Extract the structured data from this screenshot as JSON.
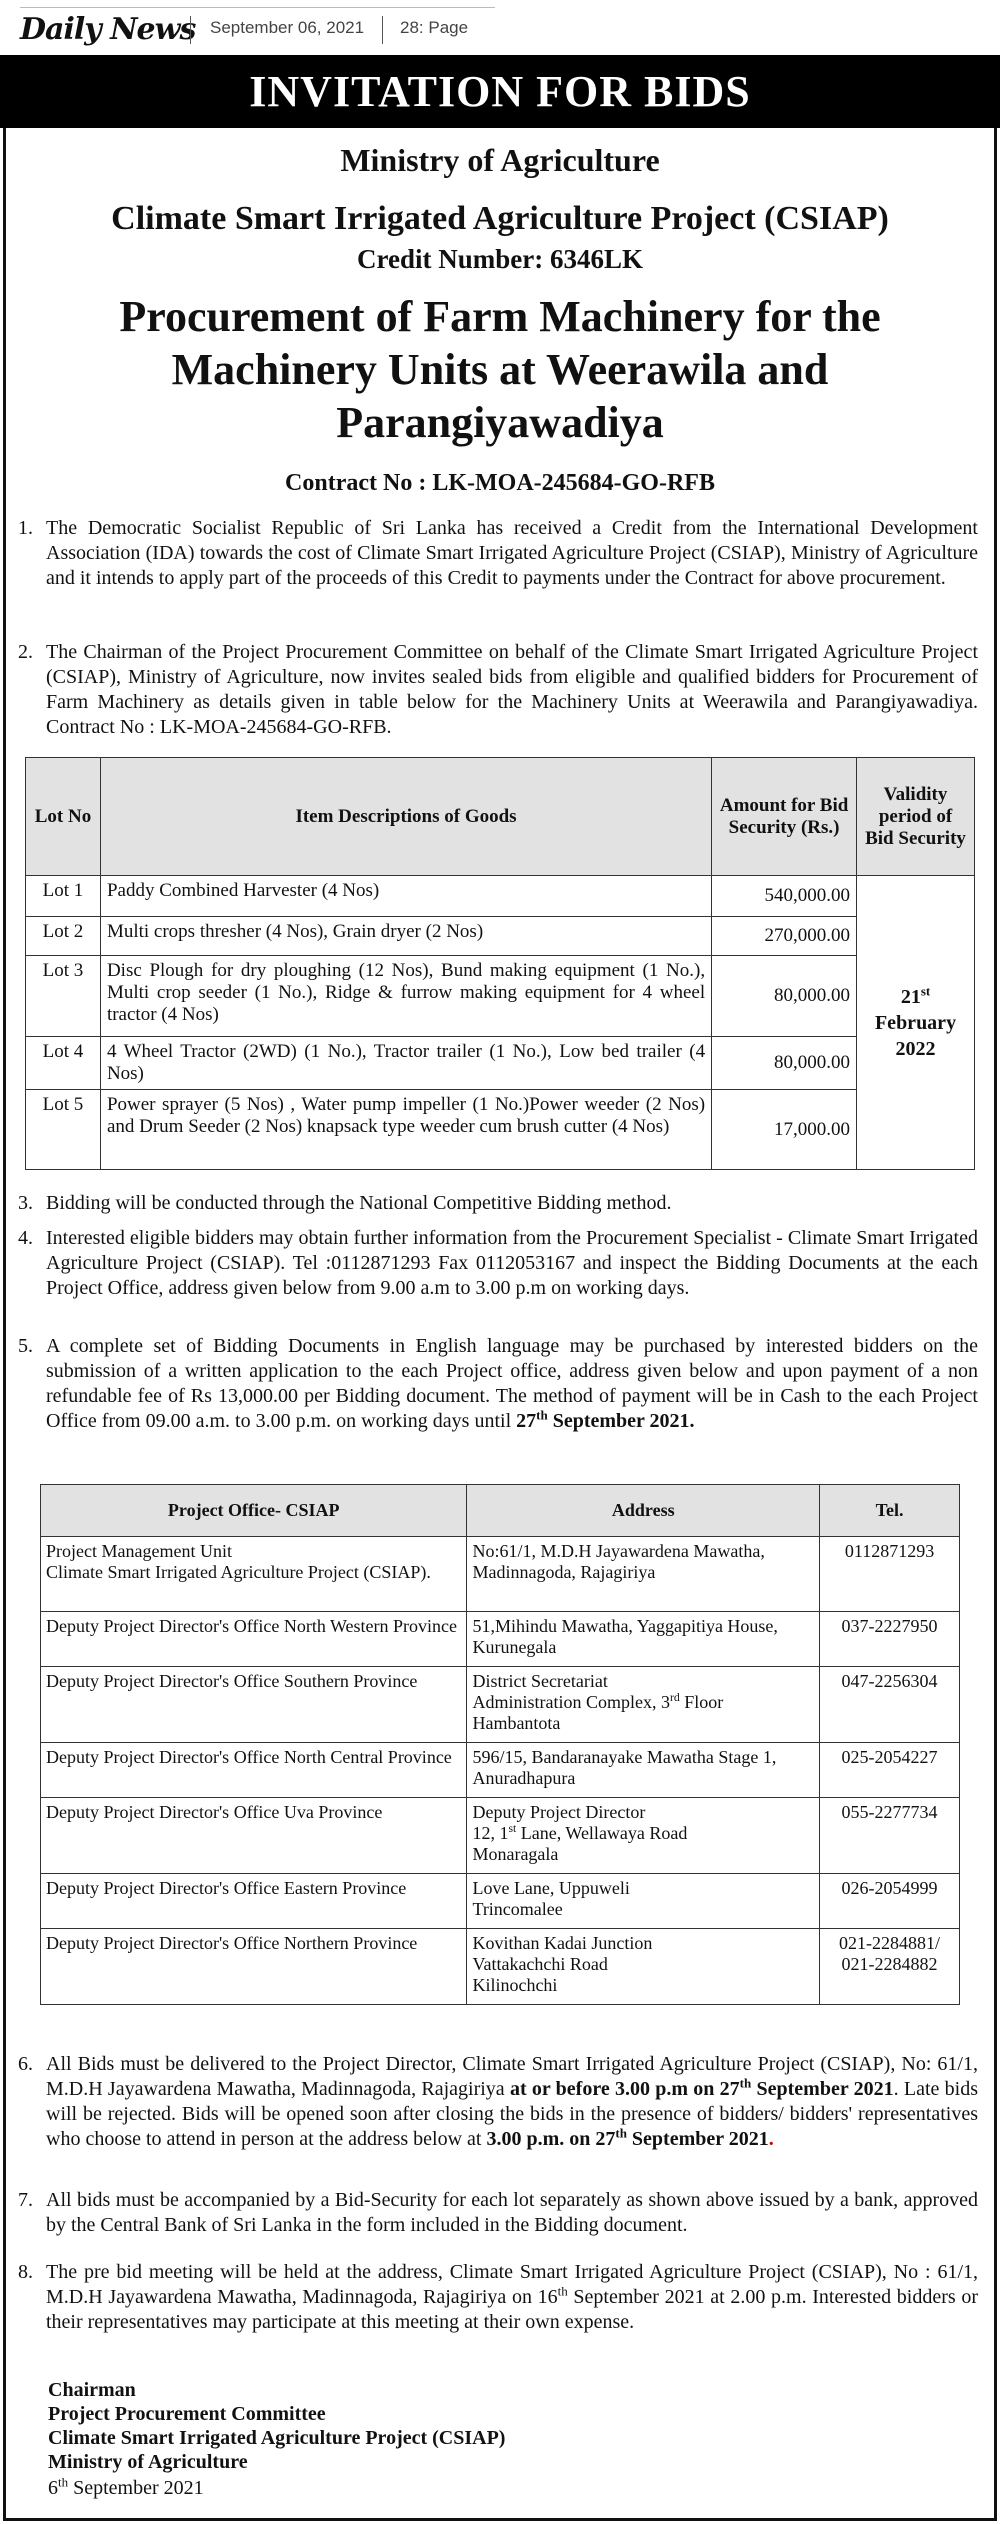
{
  "masthead": {
    "logo": "Daily News",
    "date": "September 06, 2021",
    "page": "28: Page"
  },
  "banner": "INVITATION FOR BIDS",
  "ministry": "Ministry of Agriculture",
  "project": "Climate Smart Irrigated Agriculture Project (CSIAP)",
  "credit": "Credit Number: 6346LK",
  "title": "Procurement of Farm Machinery for the Machinery Units at Weerawila and Parangiyawadiya",
  "contract": "Contract No : LK-MOA-245684-GO-RFB",
  "paras": {
    "p1": {
      "num": "1.",
      "text": "The Democratic Socialist Republic of Sri Lanka has received a Credit from the International Development Association (IDA) towards the cost of Climate Smart Irrigated Agriculture Project (CSIAP), Ministry of Agriculture and it intends to apply part of the proceeds of this Credit to payments under the Contract for above procurement."
    },
    "p2": {
      "num": "2.",
      "text": "The Chairman of the Project Procurement Committee on behalf of the Climate Smart Irrigated Agriculture Project (CSIAP), Ministry of Agriculture, now invites sealed bids from eligible and qualified bidders for Procurement of Farm Machinery as details given in table below for the Machinery Units at Weerawila and Parangiyawadiya. Contract No : LK-MOA-245684-GO-RFB."
    },
    "p3": {
      "num": "3.",
      "text": "Bidding will be conducted through the National Competitive Bidding method."
    },
    "p4": {
      "num": "4.",
      "text": "Interested eligible bidders may obtain further information from the Procurement Specialist -  Climate Smart Irrigated Agriculture Project (CSIAP). Tel :0112871293  Fax 0112053167 and inspect the Bidding Documents at the each Project Office, address given below from  9.00 a.m to 3.00 p.m on working days."
    },
    "p5": {
      "num": "5.",
      "text": "A complete set of Bidding Documents in English language may be purchased by interested bidders on the submission of a written application to the each Project office, address given below and upon payment of a non refundable fee of Rs 13,000.00 per Bidding document. The method of payment will be in Cash to the each Project Office  from 09.00 a.m. to 3.00 p.m. on working days  until ",
      "bold_a": "27",
      "bold_sup": "th",
      "bold_b": "September 2021",
      "end": "."
    },
    "p6": {
      "num": "6.",
      "text_a": "All Bids must be delivered to the Project Director, Climate Smart Irrigated Agriculture Project (CSIAP), No: 61/1, M.D.H Jayawardena Mawatha, Madinnagoda, Rajagiriya ",
      "bold_a": "at or before  3.00 p.m on 27",
      "sup_a": "th",
      "bold_b": "September 2021",
      "text_b": ". Late bids will  be rejected.  Bids will be opened soon after closing the bids in the presence of bidders/ bidders' representatives who choose to attend in person at the address below at ",
      "bold_c": "3.00 p.m. on 27",
      "sup_c": "th",
      "bold_d": "  September  2021",
      "end": "."
    },
    "p7": {
      "num": "7.",
      "text": "All bids must be accompanied by a  Bid-Security for each lot separately as shown  above issued by a bank, approved by the Central Bank of Sri Lanka in the form included in the Bidding document."
    },
    "p8": {
      "num": "8.",
      "text_a": "The pre bid meeting will be held at the address, Climate Smart Irrigated Agriculture Project (CSIAP), No : 61/1, M.D.H Jayawardena Mawatha, Madinnagoda, Rajagiriya on 16",
      "sup": "th",
      "text_b": " September 2021 at 2.00 p.m. Interested bidders or their representatives  may participate at this meeting at their  own expense."
    }
  },
  "lots_table": {
    "headers": [
      "Lot No",
      "Item Descriptions of Goods",
      "Amount for Bid Security (Rs.)",
      "Validity period of Bid Security"
    ],
    "rows": [
      {
        "lot": "Lot 1",
        "desc": "Paddy Combined Harvester (4 Nos)",
        "amount": "540,000.00"
      },
      {
        "lot": "Lot 2",
        "desc": "Multi crops thresher (4 Nos), Grain dryer (2 Nos)",
        "amount": "270,000.00"
      },
      {
        "lot": "Lot 3",
        "desc": "Disc Plough for dry ploughing (12 Nos), Bund making equipment (1 No.), Multi crop seeder (1 No.), Ridge & furrow making equipment for 4 wheel tractor (4 Nos)",
        "amount": "80,000.00"
      },
      {
        "lot": "Lot 4",
        "desc": "4 Wheel Tractor (2WD)  (1 No.), Tractor trailer  (1 No.), Low bed trailer (4 Nos)",
        "amount": "80,000.00"
      },
      {
        "lot": "Lot 5",
        "desc": "Power sprayer (5 Nos) , Water pump impeller (1 No.)Power weeder (2 Nos)  and Drum Seeder (2 Nos) knapsack type weeder cum brush cutter (4 Nos)",
        "amount": "17,000.00"
      }
    ],
    "validity": {
      "day": "21",
      "sup": "st",
      "month": "February",
      "year": "2022"
    }
  },
  "offices_table": {
    "headers": [
      "Project Office- CSIAP",
      "Address",
      "Tel."
    ],
    "rows": [
      {
        "office": [
          "Project Management Unit",
          "Climate Smart Irrigated Agriculture Project (CSIAP)."
        ],
        "address": [
          "No:61/1, M.D.H Jayawardena Mawatha, Madinnagoda,  Rajagiriya"
        ],
        "tel": [
          "0112871293"
        ]
      },
      {
        "office": [
          "Deputy Project Director's Office North Western Province"
        ],
        "address": [
          "51,Mihindu Mawatha, Yaggapitiya House,  Kurunegala"
        ],
        "tel": [
          "037-2227950"
        ]
      },
      {
        "office": [
          "Deputy Project Director's Office Southern Province"
        ],
        "address": [
          "District Secretariat",
          "Administration Complex, 3",
          "rd",
          " Floor",
          "Hambantota"
        ],
        "tel": [
          "047-2256304"
        ]
      },
      {
        "office": [
          "Deputy Project Director's Office North Central Province"
        ],
        "address": [
          "596/15, Bandaranayake Mawatha Stage 1, Anuradhapura"
        ],
        "tel": [
          "025-2054227"
        ]
      },
      {
        "office": [
          "Deputy Project Director's Office Uva Province"
        ],
        "address": [
          "Deputy Project Director",
          "12, 1",
          "st",
          " Lane, Wellawaya Road",
          "Monaragala"
        ],
        "tel": [
          "055-2277734"
        ]
      },
      {
        "office": [
          "Deputy Project Director's Office Eastern Province"
        ],
        "address": [
          "Love Lane, Uppuweli",
          "Trincomalee"
        ],
        "tel": [
          "026-2054999"
        ]
      },
      {
        "office": [
          "Deputy Project Director's Office Northern Province"
        ],
        "address": [
          "Kovithan Kadai Junction",
          "Vattakachchi Road",
          "Kilinochchi"
        ],
        "tel": [
          "021-2284881/",
          "021-2284882"
        ]
      }
    ]
  },
  "signature": {
    "lines": [
      "Chairman",
      "Project Procurement Committee",
      "Climate Smart Irrigated Agriculture Project (CSIAP)",
      "Ministry of Agriculture"
    ],
    "date_day": "6",
    "date_sup": "th",
    "date_rest": " September 2021"
  }
}
